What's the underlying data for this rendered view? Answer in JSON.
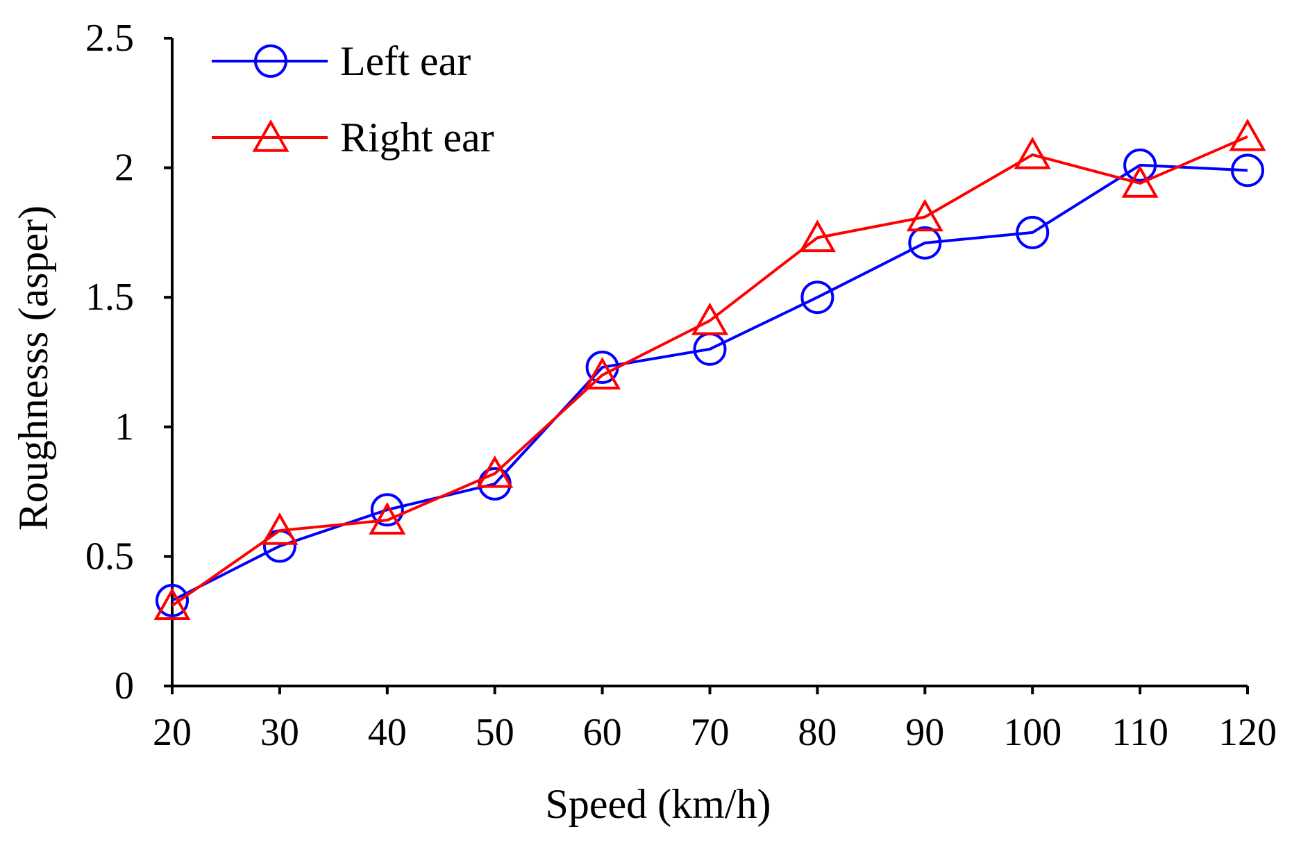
{
  "chart_data": {
    "type": "line",
    "title": "",
    "xlabel": "Speed (km/h)",
    "ylabel": "Roughnesss (asper)",
    "x": [
      20,
      30,
      40,
      50,
      60,
      70,
      80,
      90,
      100,
      110,
      120
    ],
    "x_tick_labels": [
      "20",
      "30",
      "40",
      "50",
      "60",
      "70",
      "80",
      "90",
      "100",
      "110",
      "120"
    ],
    "xlim": [
      20,
      120
    ],
    "ylim": [
      0,
      2.5
    ],
    "y_ticks": [
      0,
      0.5,
      1,
      1.5,
      2,
      2.5
    ],
    "y_tick_labels": [
      "0",
      "0.5",
      "1",
      "1.5",
      "2",
      "2.5"
    ],
    "grid": false,
    "legend_position": "top-left",
    "series": [
      {
        "name": "Left ear",
        "color": "#0000ff",
        "marker": "circle",
        "values": [
          0.33,
          0.54,
          0.68,
          0.78,
          1.23,
          1.3,
          1.5,
          1.71,
          1.75,
          2.01,
          1.99
        ]
      },
      {
        "name": "Right ear",
        "color": "#ff0000",
        "marker": "triangle",
        "values": [
          0.31,
          0.6,
          0.64,
          0.82,
          1.2,
          1.41,
          1.73,
          1.81,
          2.05,
          1.94,
          2.12
        ]
      }
    ]
  }
}
